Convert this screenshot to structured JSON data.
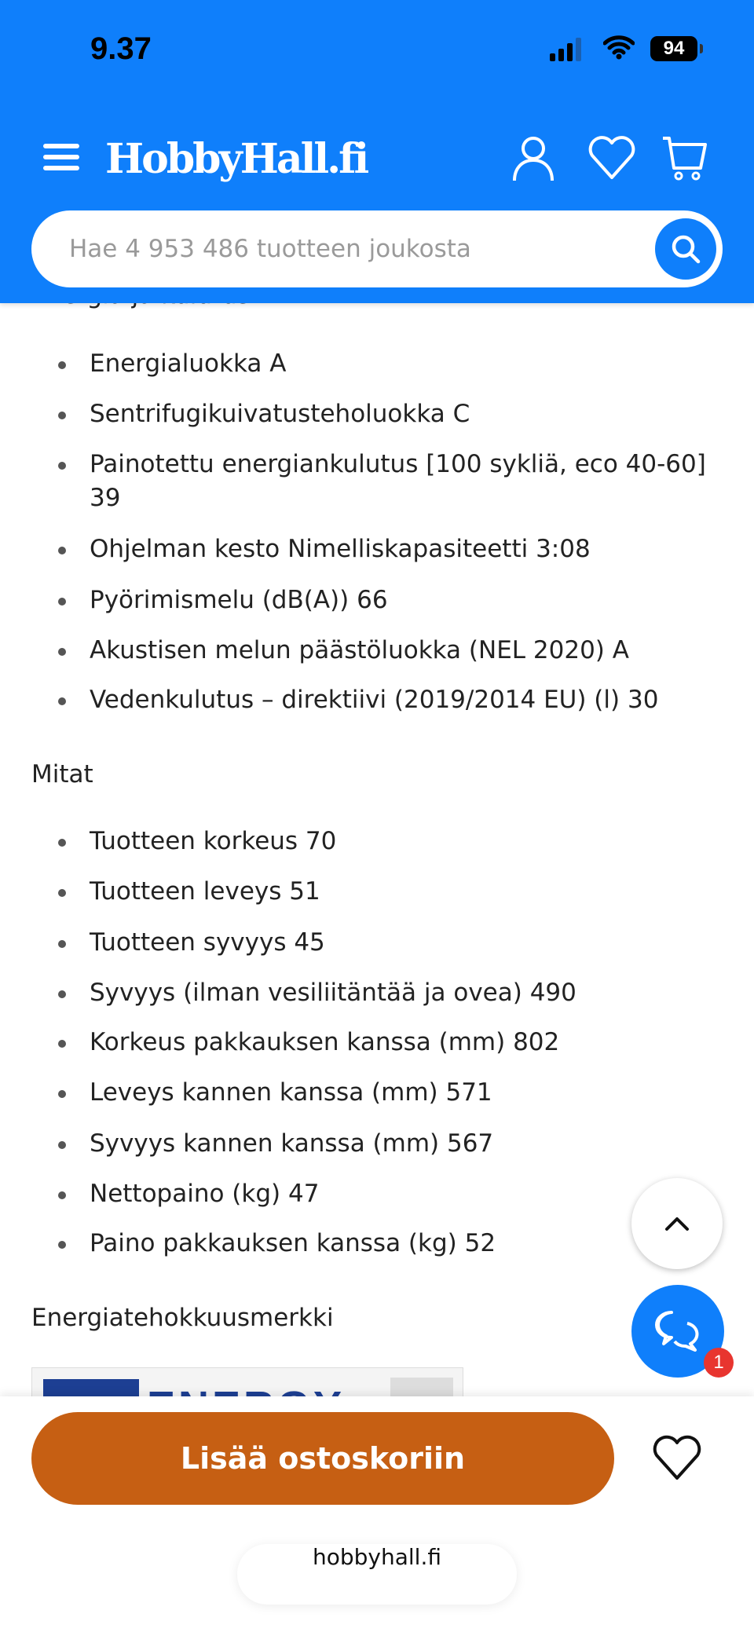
{
  "status_bar": {
    "time": "9.37",
    "battery": "94"
  },
  "header": {
    "logo": "HobbyHall.fi",
    "search_placeholder": "Hae 4 953 486 tuotteen joukosta"
  },
  "colors": {
    "brand_blue": "#0f7ffb",
    "cta_orange": "#c65f13",
    "badge_red": "#e8352f"
  },
  "sections": {
    "energy": {
      "title": "Energia ja kulutus",
      "items": [
        "Energialuokka A",
        "Sentrifugikuivatusteholuokka C",
        "Painotettu energiankulutus [100 sykliä, eco 40-60] 39",
        "Ohjelman kesto Nimelliskapasiteetti 3:08",
        "Pyörimismelu (dB(A)) 66",
        "Akustisen melun päästöluokka (NEL 2020) A",
        "Vedenkulutus – direktiivi (2019/2014 EU) (l) 30"
      ]
    },
    "dimensions": {
      "title": "Mitat",
      "items": [
        "Tuotteen korkeus 70",
        "Tuotteen leveys 51",
        "Tuotteen syvyys 45",
        "Syvyys (ilman vesiliitäntää ja ovea) 490",
        "Korkeus pakkauksen kanssa (mm) 802",
        "Leveys kannen kanssa (mm) 571",
        "Syvyys kannen kanssa (mm) 567",
        "Nettopaino (kg) 47",
        "Paino pakkauksen kanssa (kg) 52"
      ]
    },
    "energy_label": {
      "title": "Energiatehokkuusmerkki",
      "image_text": "ENERGY"
    }
  },
  "chat": {
    "badge": "1"
  },
  "bottom": {
    "add_to_cart": "Lisää ostoskoriin",
    "url": "hobbyhall.fi"
  }
}
